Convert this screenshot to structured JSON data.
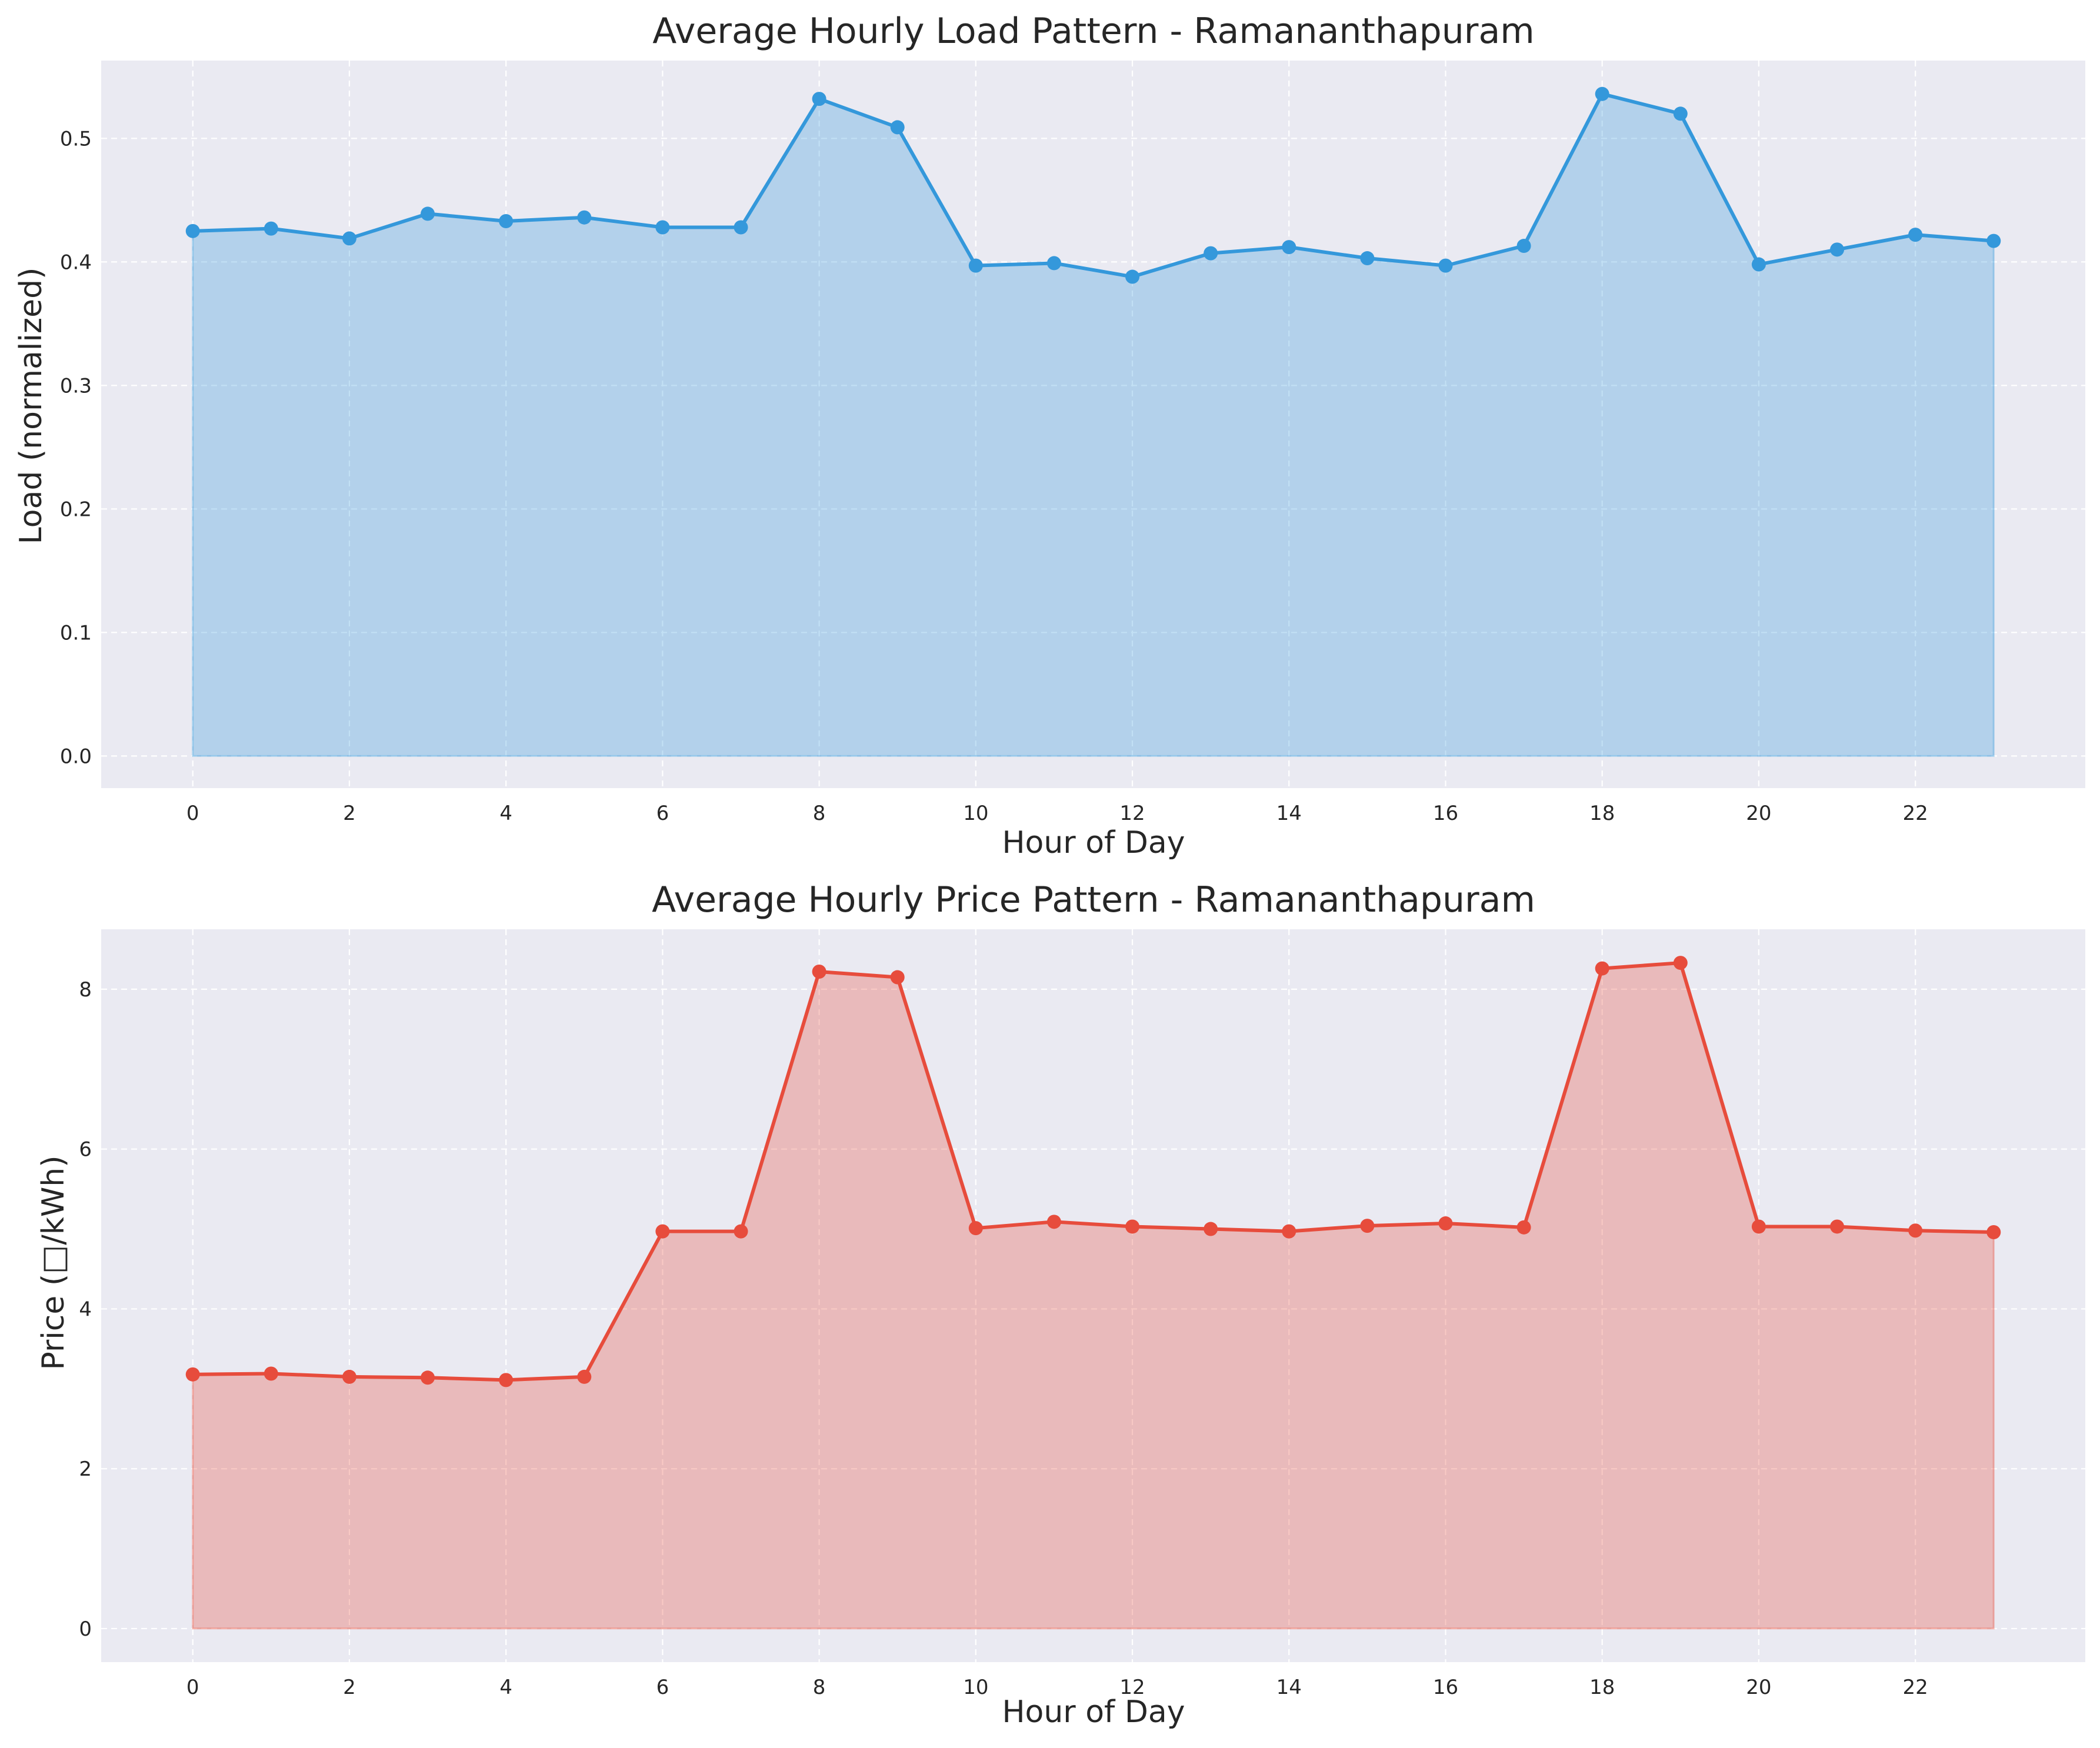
{
  "chart_data": [
    {
      "type": "area",
      "title": "Average Hourly Load Pattern - Ramananthapuram",
      "xlabel": "Hour of Day",
      "ylabel": "Load (normalized)",
      "x": [
        0,
        1,
        2,
        3,
        4,
        5,
        6,
        7,
        8,
        9,
        10,
        11,
        12,
        13,
        14,
        15,
        16,
        17,
        18,
        19,
        20,
        21,
        22,
        23
      ],
      "xticks": [
        0,
        2,
        4,
        6,
        8,
        10,
        12,
        14,
        16,
        18,
        20,
        22
      ],
      "xtick_labels": [
        "0",
        "2",
        "4",
        "6",
        "8",
        "10",
        "12",
        "14",
        "16",
        "18",
        "20",
        "22"
      ],
      "xlim": [
        -1.17,
        24.17
      ],
      "yticks": [
        0,
        0.1,
        0.2,
        0.3,
        0.4,
        0.5
      ],
      "ytick_labels": [
        "0.0",
        "0.1",
        "0.2",
        "0.3",
        "0.4",
        "0.5"
      ],
      "ylim": [
        -0.026,
        0.563
      ],
      "series": [
        {
          "values": [
            0.425,
            0.427,
            0.419,
            0.439,
            0.433,
            0.436,
            0.428,
            0.428,
            0.532,
            0.509,
            0.397,
            0.399,
            0.388,
            0.407,
            0.412,
            0.403,
            0.397,
            0.413,
            0.536,
            0.52,
            0.398,
            0.41,
            0.422,
            0.417
          ],
          "color": "#3498db"
        }
      ],
      "grid": true,
      "background": "#eaeaf2"
    },
    {
      "type": "area",
      "title": "Average Hourly Price Pattern - Ramananthapuram",
      "xlabel": "Hour of Day",
      "ylabel": "Price (□/kWh)",
      "x": [
        0,
        1,
        2,
        3,
        4,
        5,
        6,
        7,
        8,
        9,
        10,
        11,
        12,
        13,
        14,
        15,
        16,
        17,
        18,
        19,
        20,
        21,
        22,
        23
      ],
      "xticks": [
        0,
        2,
        4,
        6,
        8,
        10,
        12,
        14,
        16,
        18,
        20,
        22
      ],
      "xtick_labels": [
        "0",
        "2",
        "4",
        "6",
        "8",
        "10",
        "12",
        "14",
        "16",
        "18",
        "20",
        "22"
      ],
      "xlim": [
        -1.17,
        24.17
      ],
      "yticks": [
        0,
        2,
        4,
        6,
        8
      ],
      "ytick_labels": [
        "0",
        "2",
        "4",
        "6",
        "8"
      ],
      "ylim": [
        -0.42,
        8.75
      ],
      "series": [
        {
          "values": [
            3.18,
            3.19,
            3.15,
            3.14,
            3.11,
            3.15,
            4.97,
            4.97,
            8.22,
            8.15,
            5.01,
            5.09,
            5.03,
            5.0,
            4.97,
            5.04,
            5.07,
            5.02,
            8.26,
            8.33,
            5.03,
            5.03,
            4.98,
            4.96
          ],
          "color": "#e74c3c"
        }
      ],
      "grid": true,
      "background": "#eaeaf2"
    }
  ]
}
